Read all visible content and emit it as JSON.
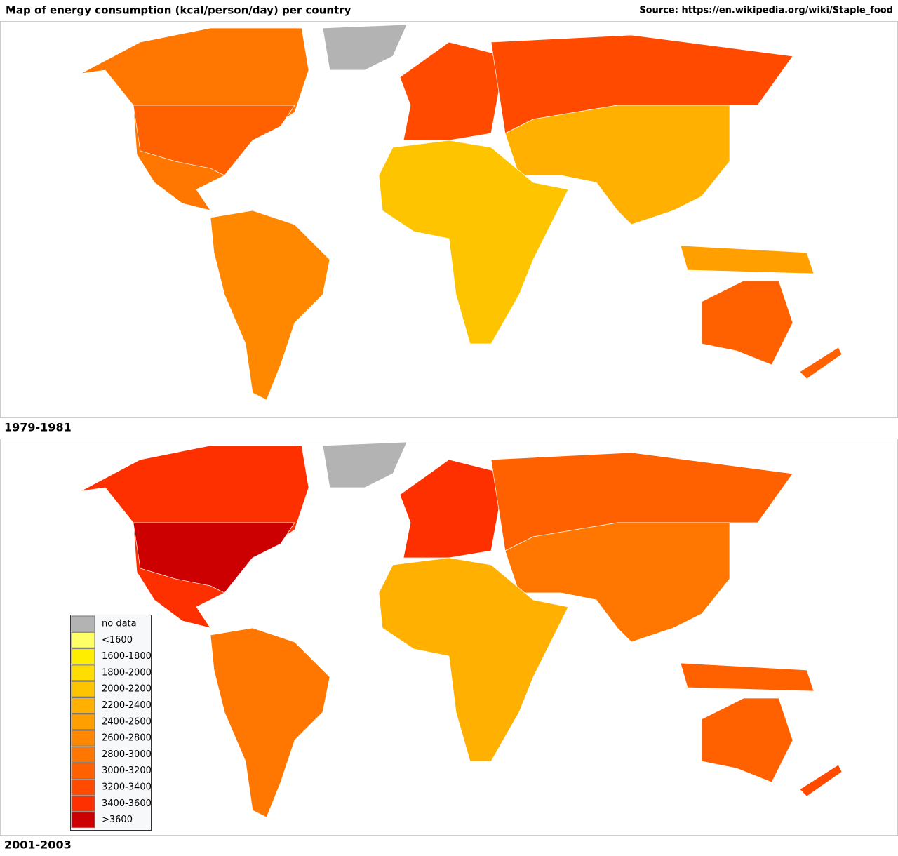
{
  "header": {
    "title": "Map of energy consumption (kcal/person/day) per country",
    "source": "Source: https://en.wikipedia.org/wiki/Staple_food"
  },
  "maps": [
    {
      "label": "1979-1981"
    },
    {
      "label": "2001-2003"
    }
  ],
  "legend": {
    "items": [
      {
        "label": "no data",
        "color": "#b3b3b3"
      },
      {
        "label": "<1600",
        "color": "#ffff66"
      },
      {
        "label": "1600-1800",
        "color": "#ffee00"
      },
      {
        "label": "1800-2000",
        "color": "#ffdd00"
      },
      {
        "label": "2000-2200",
        "color": "#ffc400"
      },
      {
        "label": "2200-2400",
        "color": "#ffb000"
      },
      {
        "label": "2400-2600",
        "color": "#ff9f00"
      },
      {
        "label": "2600-2800",
        "color": "#ff8800"
      },
      {
        "label": "2800-3000",
        "color": "#ff7700"
      },
      {
        "label": "3000-3200",
        "color": "#ff6000"
      },
      {
        "label": "3200-3400",
        "color": "#ff4a00"
      },
      {
        "label": "3400-3600",
        "color": "#ff3000"
      },
      {
        "label": ">3600",
        "color": "#cc0000"
      }
    ]
  }
}
